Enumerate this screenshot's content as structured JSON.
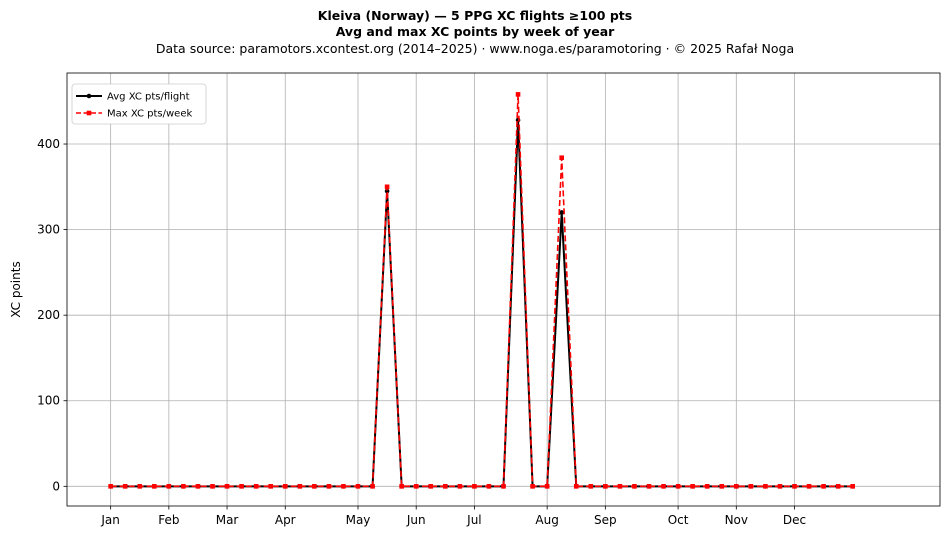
{
  "chart_data": {
    "type": "line",
    "title": "Kleiva (Norway)  —  5 PPG XC flights ≥100 pts",
    "subtitle": "Avg and max XC points by week of year",
    "source_line": "Data source: paramotors.xcontest.org (2014–2025)  ·  www.noga.es/paramotoring  ·  © 2025 Rafał Noga",
    "xlabel": "",
    "ylabel": "XC points",
    "xlim": [
      -3,
      57
    ],
    "ylim": [
      -23,
      483
    ],
    "yticks": [
      0,
      100,
      200,
      300,
      400
    ],
    "x_tick_labels": [
      {
        "week": 0,
        "label": "Jan"
      },
      {
        "week": 4,
        "label": "Feb"
      },
      {
        "week": 8,
        "label": "Mar"
      },
      {
        "week": 12,
        "label": "Apr"
      },
      {
        "week": 17,
        "label": "May"
      },
      {
        "week": 21,
        "label": "Jun"
      },
      {
        "week": 25,
        "label": "Jul"
      },
      {
        "week": 30,
        "label": "Aug"
      },
      {
        "week": 34,
        "label": "Sep"
      },
      {
        "week": 39,
        "label": "Oct"
      },
      {
        "week": 43,
        "label": "Nov"
      },
      {
        "week": 47,
        "label": "Dec"
      }
    ],
    "grid": true,
    "legend_position": "top-left",
    "x": [
      0,
      1,
      2,
      3,
      4,
      5,
      6,
      7,
      8,
      9,
      10,
      11,
      12,
      13,
      14,
      15,
      16,
      17,
      18,
      19,
      20,
      21,
      22,
      23,
      24,
      25,
      26,
      27,
      28,
      29,
      30,
      31,
      32,
      33,
      34,
      35,
      36,
      37,
      38,
      39,
      40,
      41,
      42,
      43,
      44,
      45,
      46,
      47,
      48,
      49,
      50,
      51
    ],
    "series": [
      {
        "name": "Avg XC pts/flight",
        "color": "#000000",
        "marker": "circle",
        "line_style": "solid",
        "values": [
          0,
          0,
          0,
          0,
          0,
          0,
          0,
          0,
          0,
          0,
          0,
          0,
          0,
          0,
          0,
          0,
          0,
          0,
          0,
          345,
          0,
          0,
          0,
          0,
          0,
          0,
          0,
          0,
          428,
          0,
          0,
          320,
          0,
          0,
          0,
          0,
          0,
          0,
          0,
          0,
          0,
          0,
          0,
          0,
          0,
          0,
          0,
          0,
          0,
          0,
          0,
          0
        ]
      },
      {
        "name": "Max XC pts/week",
        "color": "#ff0000",
        "marker": "square",
        "line_style": "dashed",
        "values": [
          0,
          0,
          0,
          0,
          0,
          0,
          0,
          0,
          0,
          0,
          0,
          0,
          0,
          0,
          0,
          0,
          0,
          0,
          0,
          350,
          0,
          0,
          0,
          0,
          0,
          0,
          0,
          0,
          458,
          0,
          0,
          384,
          0,
          0,
          0,
          0,
          0,
          0,
          0,
          0,
          0,
          0,
          0,
          0,
          0,
          0,
          0,
          0,
          0,
          0,
          0,
          0
        ]
      }
    ]
  }
}
